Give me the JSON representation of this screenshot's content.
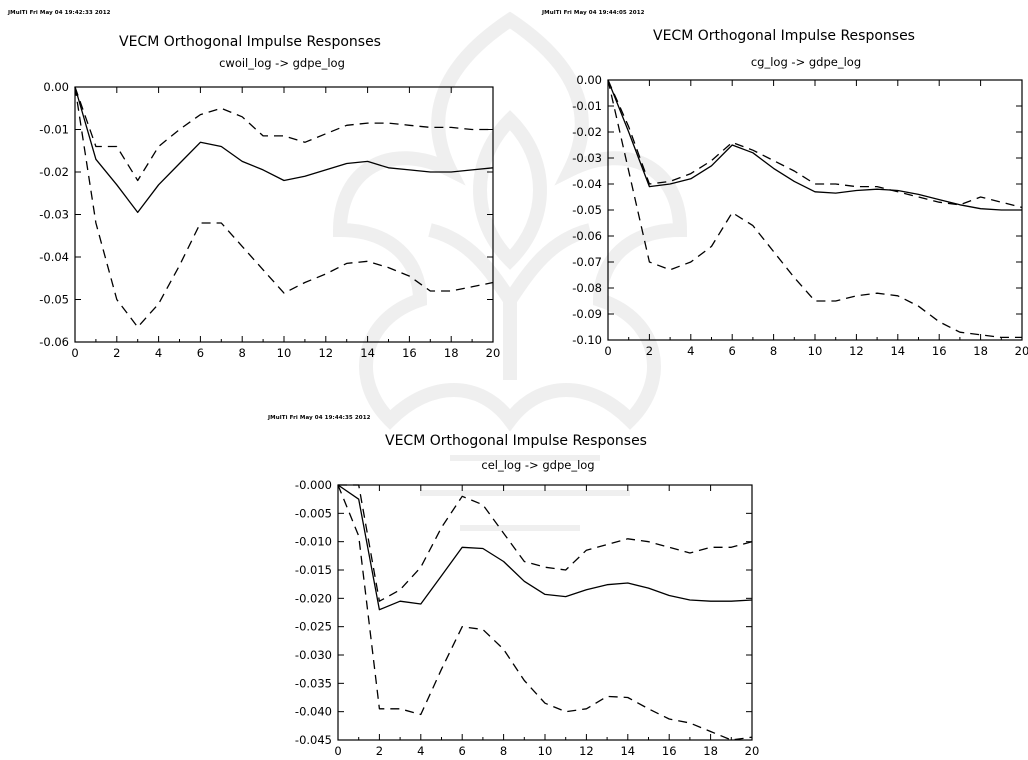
{
  "colors": {
    "line": "#000000",
    "background": "#ffffff",
    "watermark": "#8a8a8a"
  },
  "chart_data": [
    {
      "type": "line",
      "stamp": "JMulTi   Fri May 04 19:42:33 2012",
      "title": "VECM Orthogonal Impulse Responses",
      "subtitle": "cwoil_log -> gdpe_log",
      "xlim": [
        0,
        20
      ],
      "ylim": [
        -0.06,
        0.0
      ],
      "x_ticks": [
        "0",
        "2",
        "4",
        "6",
        "8",
        "10",
        "12",
        "14",
        "16",
        "18",
        "20"
      ],
      "y_ticks": [
        "0.00",
        "-0.01",
        "-0.02",
        "-0.03",
        "-0.04",
        "-0.05",
        "-0.06"
      ],
      "x": [
        0,
        1,
        2,
        3,
        4,
        5,
        6,
        7,
        8,
        9,
        10,
        11,
        12,
        13,
        14,
        15,
        16,
        17,
        18,
        19,
        20
      ],
      "series": [
        {
          "style": "solid",
          "values": [
            0.0,
            -0.017,
            -0.023,
            -0.0295,
            -0.023,
            -0.018,
            -0.013,
            -0.014,
            -0.0175,
            -0.0195,
            -0.022,
            -0.021,
            -0.0195,
            -0.018,
            -0.0175,
            -0.019,
            -0.0195,
            -0.02,
            -0.02,
            -0.0195,
            -0.019
          ]
        },
        {
          "style": "dashed",
          "values": [
            0.0,
            -0.014,
            -0.014,
            -0.022,
            -0.014,
            -0.01,
            -0.0065,
            -0.005,
            -0.007,
            -0.0115,
            -0.0115,
            -0.013,
            -0.011,
            -0.009,
            -0.0085,
            -0.0085,
            -0.009,
            -0.0095,
            -0.0095,
            -0.01,
            -0.01
          ]
        },
        {
          "style": "dashed",
          "values": [
            0.0,
            -0.032,
            -0.05,
            -0.0565,
            -0.051,
            -0.042,
            -0.032,
            -0.032,
            -0.0375,
            -0.043,
            -0.0485,
            -0.046,
            -0.044,
            -0.0415,
            -0.041,
            -0.0425,
            -0.0445,
            -0.048,
            -0.048,
            -0.047,
            -0.046
          ]
        }
      ]
    },
    {
      "type": "line",
      "stamp": "JMulTi   Fri May 04 19:44:05 2012",
      "title": "VECM Orthogonal Impulse Responses",
      "subtitle": "cg_log -> gdpe_log",
      "xlim": [
        0,
        20
      ],
      "ylim": [
        -0.1,
        0.0
      ],
      "x_ticks": [
        "0",
        "2",
        "4",
        "6",
        "8",
        "10",
        "12",
        "14",
        "16",
        "18",
        "20"
      ],
      "y_ticks": [
        "0.00",
        "-0.01",
        "-0.02",
        "-0.03",
        "-0.04",
        "-0.05",
        "-0.06",
        "-0.07",
        "-0.08",
        "-0.09",
        "-0.10"
      ],
      "x": [
        0,
        1,
        2,
        3,
        4,
        5,
        6,
        7,
        8,
        9,
        10,
        11,
        12,
        13,
        14,
        15,
        16,
        17,
        18,
        19,
        20
      ],
      "series": [
        {
          "style": "solid",
          "values": [
            0.0,
            -0.02,
            -0.041,
            -0.04,
            -0.038,
            -0.033,
            -0.025,
            -0.028,
            -0.034,
            -0.039,
            -0.043,
            -0.0435,
            -0.0425,
            -0.042,
            -0.0425,
            -0.044,
            -0.046,
            -0.048,
            -0.0495,
            -0.05,
            -0.05
          ]
        },
        {
          "style": "dashed",
          "values": [
            0.0,
            -0.018,
            -0.04,
            -0.039,
            -0.036,
            -0.031,
            -0.024,
            -0.027,
            -0.031,
            -0.035,
            -0.04,
            -0.04,
            -0.041,
            -0.041,
            -0.043,
            -0.045,
            -0.047,
            -0.048,
            -0.045,
            -0.047,
            -0.049
          ]
        },
        {
          "style": "dashed",
          "values": [
            0.0,
            -0.035,
            -0.07,
            -0.073,
            -0.07,
            -0.064,
            -0.051,
            -0.056,
            -0.066,
            -0.076,
            -0.085,
            -0.085,
            -0.083,
            -0.082,
            -0.083,
            -0.087,
            -0.093,
            -0.097,
            -0.098,
            -0.099,
            -0.099
          ]
        }
      ]
    },
    {
      "type": "line",
      "stamp": "JMulTi   Fri May 04 19:44:35 2012",
      "title": "VECM Orthogonal Impulse Responses",
      "subtitle": "cel_log -> gdpe_log",
      "xlim": [
        0,
        20
      ],
      "ylim": [
        -0.045,
        0.0
      ],
      "x_ticks": [
        "0",
        "2",
        "4",
        "6",
        "8",
        "10",
        "12",
        "14",
        "16",
        "18",
        "20"
      ],
      "y_ticks": [
        "-0.000",
        "-0.005",
        "-0.010",
        "-0.015",
        "-0.020",
        "-0.025",
        "-0.030",
        "-0.035",
        "-0.040",
        "-0.045"
      ],
      "x": [
        0,
        1,
        2,
        3,
        4,
        5,
        6,
        7,
        8,
        9,
        10,
        11,
        12,
        13,
        14,
        15,
        16,
        17,
        18,
        19,
        20
      ],
      "series": [
        {
          "style": "solid",
          "values": [
            0.0,
            -0.0025,
            -0.022,
            -0.0205,
            -0.021,
            -0.016,
            -0.011,
            -0.0112,
            -0.0135,
            -0.017,
            -0.0193,
            -0.0197,
            -0.0185,
            -0.0176,
            -0.0173,
            -0.0182,
            -0.0195,
            -0.0203,
            -0.0205,
            -0.0205,
            -0.0203
          ]
        },
        {
          "style": "dashed",
          "values": [
            0.0,
            0.0,
            -0.0205,
            -0.0185,
            -0.0145,
            -0.0075,
            -0.002,
            -0.0035,
            -0.0085,
            -0.0135,
            -0.0145,
            -0.015,
            -0.0115,
            -0.0105,
            -0.0095,
            -0.01,
            -0.011,
            -0.012,
            -0.011,
            -0.011,
            -0.01
          ]
        },
        {
          "style": "dashed",
          "values": [
            0.0,
            -0.009,
            -0.0395,
            -0.0395,
            -0.0405,
            -0.0325,
            -0.025,
            -0.0255,
            -0.029,
            -0.0345,
            -0.0385,
            -0.04,
            -0.0395,
            -0.0373,
            -0.0375,
            -0.0395,
            -0.0413,
            -0.042,
            -0.0435,
            -0.045,
            -0.0445
          ]
        }
      ]
    }
  ]
}
